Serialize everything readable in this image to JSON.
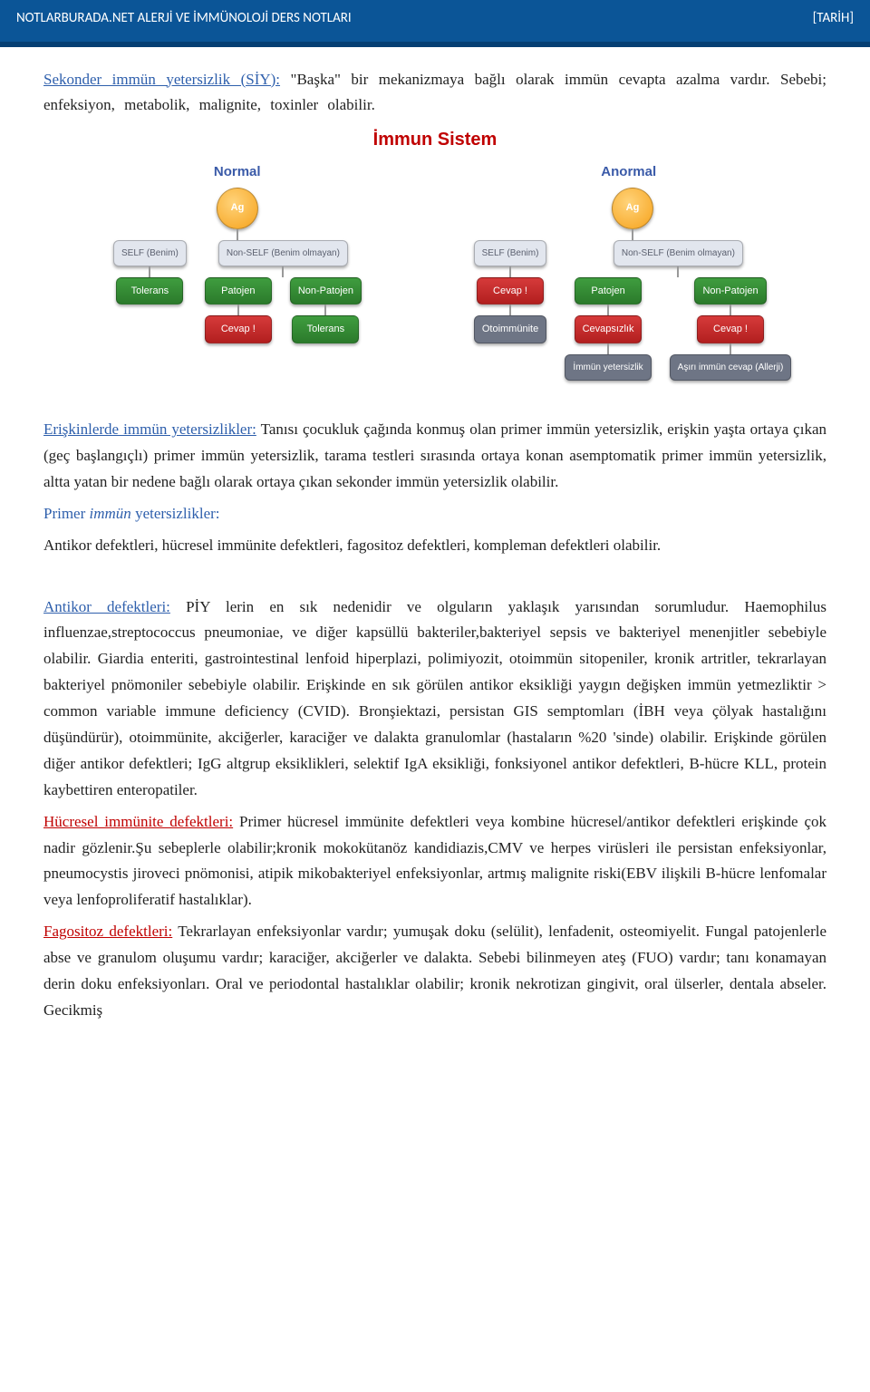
{
  "header": {
    "left": "NOTLARBURADA.NET ALERJİ VE İMMÜNOLOJİ DERS NOTLARI",
    "right": "[TARİH]"
  },
  "intro": {
    "title": "Sekonder immün yetersizlik (SİY):",
    "rest": " \"Başka\" bir mekanizmaya bağlı olarak immün cevapta azalma vardır.       Sebebi;    enfeksiyon,    metabolik,    malignite,    toxinler    olabilir."
  },
  "diagram": {
    "title": "İmmun Sistem",
    "sides": [
      "Normal",
      "Anormal"
    ],
    "ag": "Ag",
    "self": "SELF\n(Benim)",
    "nonself": "Non-SELF\n(Benim olmayan)",
    "tolerans": "Tolerans",
    "patojen": "Patojen",
    "nonpatojen": "Non-Patojen",
    "cevap": "Cevap !",
    "otoimm": "Otoimmünite",
    "cevapsizlik": "Cevapsızlık",
    "immunyet": "İmmün yetersizlik",
    "asiri": "Aşırı immün cevap (Allerji)"
  },
  "body": {
    "eriskinlerde_title": "Erişkinlerde immün yetersizlikler:",
    "eriskinlerde_rest": " Tanısı çocukluk çağında konmuş olan primer immün yetersizlik, erişkin yaşta ortaya çıkan (geç başlangıçlı) primer immün yetersizlik, tarama testleri sırasında ortaya konan asemptomatik primer immün yetersizlik, altta yatan bir nedene bağlı olarak ortaya çıkan sekonder immün yetersizlik olabilir.",
    "primer_title1": "Primer ",
    "primer_title_italic": "immün",
    "primer_title2": " yetersizlikler:",
    "primer_body": "Antikor defektleri, hücresel immünite defektleri, fagositoz defektleri, kompleman defektleri olabilir.",
    "antikor_title": "Antikor defektleri:",
    "antikor_body": " PİY lerin en sık nedenidir ve olguların yaklaşık yarısından sorumludur. Haemophilus influenzae,streptococcus pneumoniae, ve diğer kapsüllü bakteriler,bakteriyel sepsis ve bakteriyel menenjitler sebebiyle olabilir. Giardia enteriti, gastrointestinal lenfoid hiperplazi, polimiyozit, otoimmün sitopeniler, kronik artritler, tekrarlayan bakteriyel pnömoniler sebebiyle olabilir. Erişkinde en sık görülen antikor eksikliği yaygın değişken immün yetmezliktir > common variable immune deficiency (CVID). Bronşiektazi, persistan GIS semptomları (İBH veya çölyak hastalığını düşündürür), otoimmünite, akciğerler, karaciğer ve dalakta granulomlar (hastaların %20 'sinde) olabilir. Erişkinde görülen diğer antikor defektleri; IgG altgrup eksiklikleri, selektif IgA eksikliği, fonksiyonel antikor defektleri, B-hücre KLL, protein kaybettiren enteropatiler.",
    "hucresel_title": "Hücresel immünite defektleri:",
    "hucresel_body": " Primer hücresel immünite defektleri veya kombine hücresel/antikor defektleri erişkinde çok nadir gözlenir.Şu sebeplerle olabilir;kronik mokokütanöz kandidiazis,CMV ve herpes virüsleri ile persistan enfeksiyonlar, pneumocystis jiroveci pnömonisi, atipik mikobakteriyel enfeksiyonlar, artmış malignite riski(EBV ilişkili B-hücre lenfomalar veya lenfoproliferatif hastalıklar).",
    "fagositoz_title": "Fagositoz defektleri:",
    "fagositoz_body": " Tekrarlayan enfeksiyonlar vardır; yumuşak doku (selülit), lenfadenit, osteomiyelit. Fungal patojenlerle abse ve granulom oluşumu vardır; karaciğer, akciğerler ve dalakta. Sebebi bilinmeyen ateş (FUO) vardır; tanı konamayan derin doku enfeksiyonları. Oral ve periodontal hastalıklar olabilir; kronik nekrotizan gingivit, oral ülserler, dentala abseler. Gecikmiş"
  },
  "colors": {
    "header_bg": "#0b5597",
    "blue_text": "#2e5fac",
    "red_text": "#c00000"
  }
}
